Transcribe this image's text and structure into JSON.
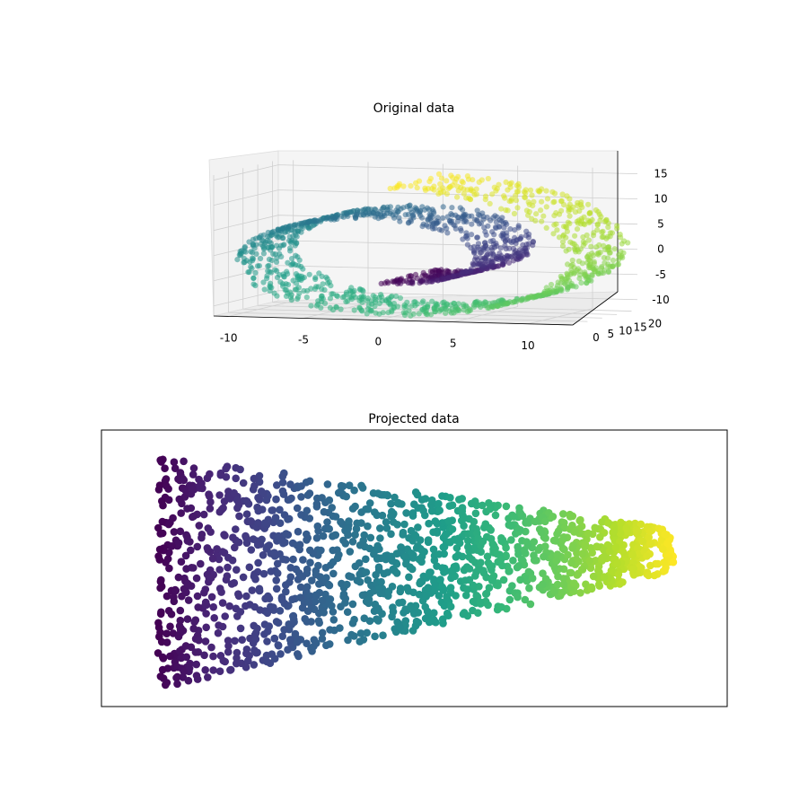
{
  "chart_data": [
    {
      "type": "scatter",
      "title": "Original data",
      "projection": "3d",
      "colormap": "viridis",
      "xlim": [
        -11,
        13
      ],
      "ylim": [
        0,
        22
      ],
      "zlim": [
        -12,
        16
      ],
      "xticks": [
        -10,
        -5,
        0,
        5,
        10
      ],
      "yticks": [
        0,
        5,
        10,
        15,
        20
      ],
      "zticks": [
        -10,
        -5,
        0,
        5,
        10,
        15
      ],
      "grid": true,
      "series": [
        {
          "description_of_points": "Swiss roll: ~1500 points, x = t cos t, y in [0, 21], z = t sin t, t from 4.7 to 14.1",
          "t_range": [
            4.71,
            14.14
          ],
          "height_range": [
            0,
            21
          ],
          "n_points": 1500
        }
      ]
    },
    {
      "type": "scatter",
      "title": "Projected data",
      "colormap": "viridis",
      "axis_ticks": false,
      "series": [
        {
          "description_of_points": "2-D embedding: points colored by roll position t, forming a funnel that narrows from left (dark purple) to right (yellow)",
          "n_points": 1500
        }
      ]
    }
  ],
  "colors": {
    "viridis_start": "#440154",
    "viridis_mid": "#21918c",
    "viridis_end": "#fde725",
    "pane": "#f2f2f2",
    "grid": "#cccccc"
  }
}
